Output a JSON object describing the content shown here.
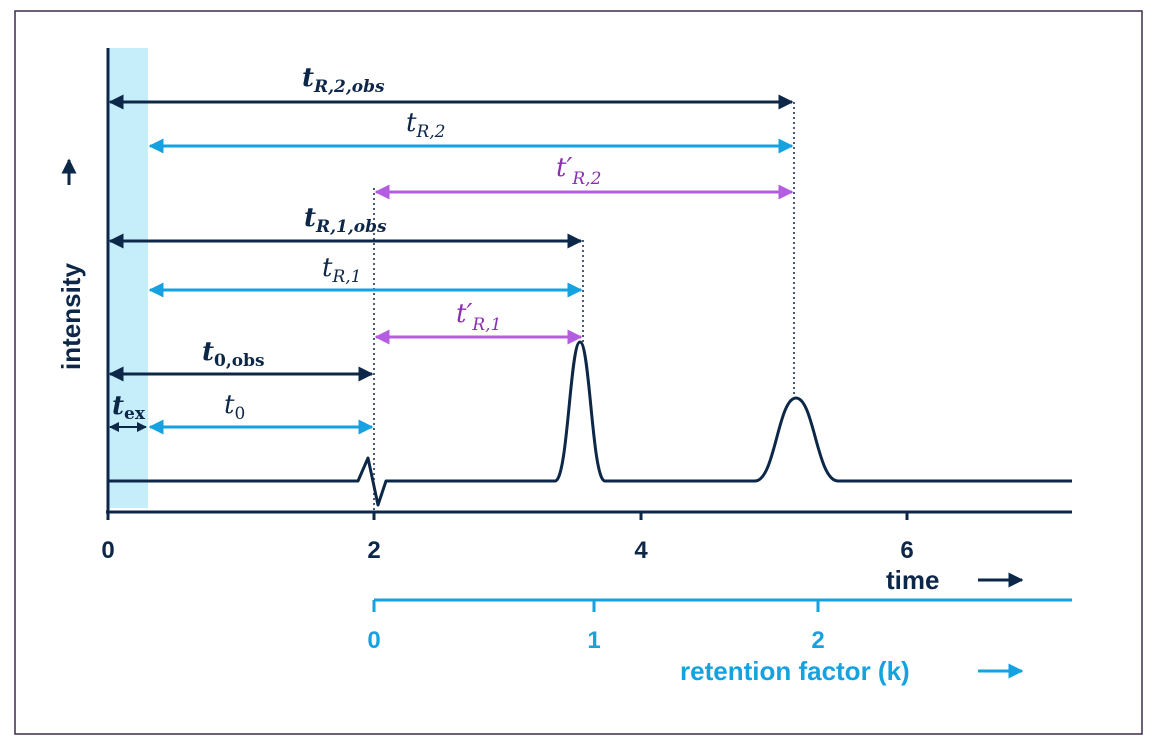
{
  "axes": {
    "y_label": "intensity",
    "time_label": "time",
    "k_label": "retention factor (k)",
    "time_ticks": [
      "0",
      "2",
      "4",
      "6"
    ],
    "k_ticks": [
      "0",
      "1",
      "2"
    ]
  },
  "intervals": [
    {
      "id": "t_ex",
      "base": "t",
      "sub": "ex",
      "from": 0,
      "to": 0.3,
      "color": "#0d2748"
    },
    {
      "id": "t_0",
      "base": "t",
      "sub": "0",
      "from": 0.3,
      "to": 2,
      "color": "#16a2e0"
    },
    {
      "id": "t_0_obs",
      "base": "t",
      "sub": "0,obs",
      "from": 0,
      "to": 2,
      "color": "#0d2748"
    },
    {
      "id": "t_prime_R1",
      "base": "t′",
      "sub": "R,1",
      "from": 2,
      "to": 3.6,
      "color": "#b55de0"
    },
    {
      "id": "t_R1",
      "base": "t",
      "sub": "R,1",
      "from": 0.3,
      "to": 3.6,
      "color": "#16a2e0"
    },
    {
      "id": "t_R1_obs",
      "base": "t",
      "sub": "R,1,obs",
      "from": 0,
      "to": 3.6,
      "color": "#0d2748"
    },
    {
      "id": "t_prime_R2",
      "base": "t′",
      "sub": "R,2",
      "from": 2,
      "to": 5.2,
      "color": "#b55de0"
    },
    {
      "id": "t_R2",
      "base": "t",
      "sub": "R,2",
      "from": 0.3,
      "to": 5.2,
      "color": "#16a2e0"
    },
    {
      "id": "t_R2_obs",
      "base": "t",
      "sub": "R,2,obs",
      "from": 0,
      "to": 5.2,
      "color": "#0d2748"
    }
  ],
  "colors": {
    "dark": "#0d2748",
    "cyan": "#16a2e0",
    "purple": "#b55de0",
    "extra_column_band": "#c5eefa",
    "frame": "#3a2c4a"
  }
}
